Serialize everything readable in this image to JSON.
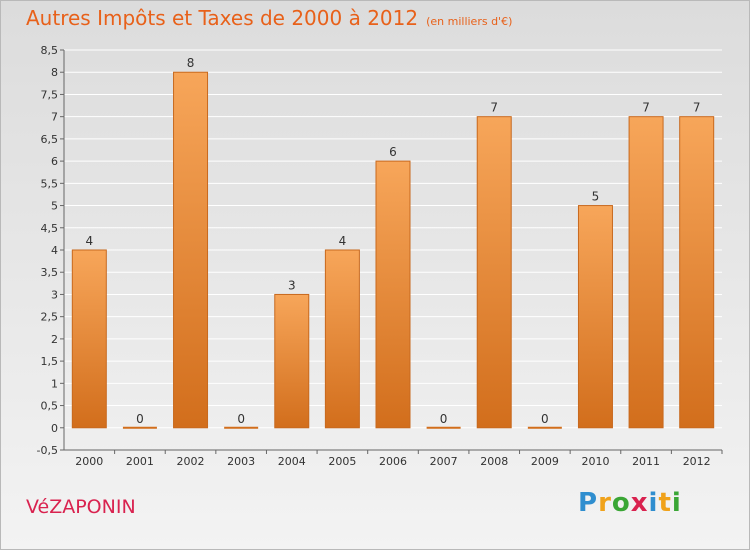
{
  "header": {
    "title": "Autres Impôts et Taxes de 2000 à 2012",
    "unit": "(en milliers d'€)"
  },
  "footer": {
    "commune": "VéZAPONIN",
    "logo": [
      "P",
      "r",
      "o",
      "x",
      "i",
      "t",
      "i"
    ]
  },
  "chart_data": {
    "type": "bar",
    "title": "Autres Impôts et Taxes de 2000 à 2012",
    "subtitle": "(en milliers d'€)",
    "xlabel": "",
    "ylabel": "",
    "categories": [
      "2000",
      "2001",
      "2002",
      "2003",
      "2004",
      "2005",
      "2006",
      "2007",
      "2008",
      "2009",
      "2010",
      "2011",
      "2012"
    ],
    "values": [
      4,
      0,
      8,
      0,
      3,
      4,
      6,
      0,
      7,
      0,
      5,
      7,
      7
    ],
    "ylim": [
      -0.5,
      8.5
    ],
    "yticks": [
      "-0,5",
      "0",
      "0,5",
      "1",
      "1,5",
      "2",
      "2,5",
      "3",
      "3,5",
      "4",
      "4,5",
      "5",
      "5,5",
      "6",
      "6,5",
      "7",
      "7,5",
      "8",
      "8,5"
    ],
    "grid": true,
    "legend": "none",
    "colors": {
      "bar_top": "#f7a65a",
      "bar_bottom": "#d26e1c",
      "bar_stroke": "#c8691e",
      "grid": "#ffffff",
      "title": "#e8611a",
      "commune": "#d9224f"
    }
  }
}
